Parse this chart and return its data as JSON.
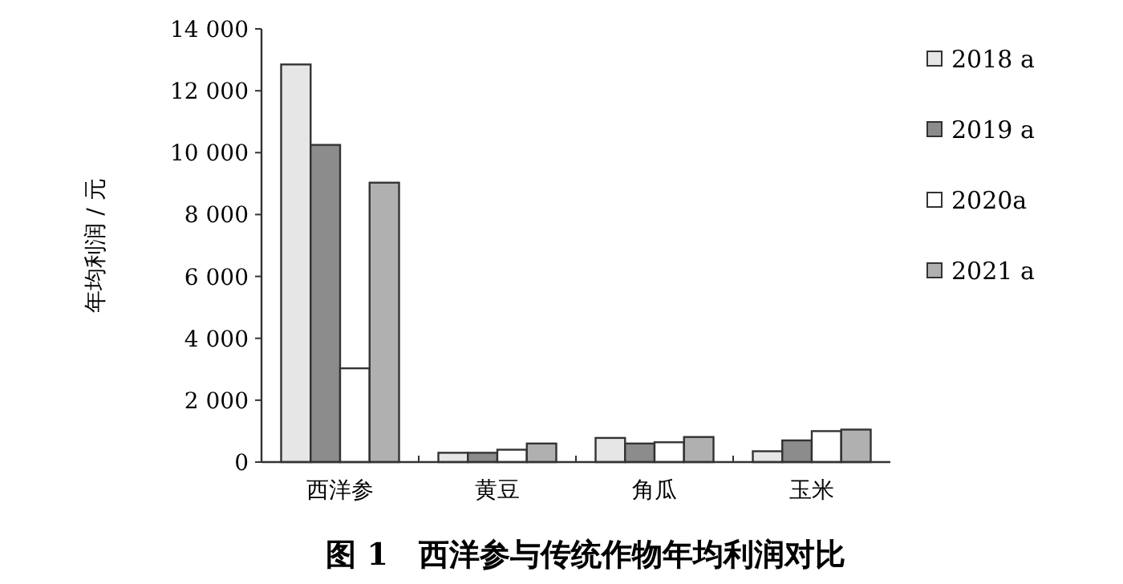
{
  "chart_data": {
    "type": "bar",
    "title": "图 1　西洋参与传统作物年均利润对比",
    "ylabel": "年均利润 / 元",
    "categories": [
      "西洋参",
      "黄豆",
      "角瓜",
      "玉米"
    ],
    "series": [
      {
        "name": "2018 a",
        "color": "#e6e6e6",
        "values": [
          12850,
          300,
          780,
          350
        ]
      },
      {
        "name": "2019 a",
        "color": "#8c8c8c",
        "values": [
          10250,
          300,
          600,
          700
        ]
      },
      {
        "name": "2020a",
        "color": "#ffffff",
        "values": [
          3030,
          400,
          640,
          1000
        ]
      },
      {
        "name": "2021 a",
        "color": "#b0b0b0",
        "values": [
          9030,
          600,
          810,
          1050
        ]
      }
    ],
    "ylim": [
      0,
      14000
    ],
    "yticks": [
      {
        "value": 0,
        "label": "0"
      },
      {
        "value": 2000,
        "label": "2 000"
      },
      {
        "value": 4000,
        "label": "4 000"
      },
      {
        "value": 6000,
        "label": "6 000"
      },
      {
        "value": 8000,
        "label": "8 000"
      },
      {
        "value": 10000,
        "label": "10 000"
      },
      {
        "value": 12000,
        "label": "12 000"
      },
      {
        "value": 14000,
        "label": "14 000"
      }
    ],
    "legend": "top right"
  }
}
